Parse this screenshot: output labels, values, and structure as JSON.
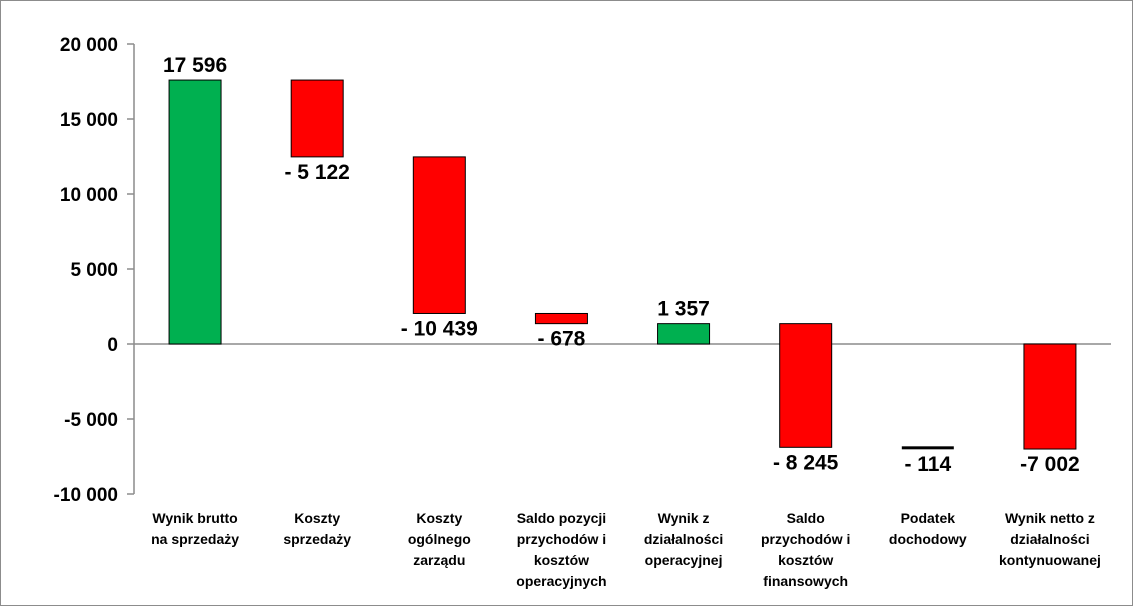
{
  "chart_data": {
    "type": "bar",
    "subtype": "waterfall",
    "title": "",
    "xlabel": "",
    "ylabel": "",
    "ylim": [
      -10000,
      20000
    ],
    "yticks": [
      20000,
      15000,
      10000,
      5000,
      0,
      -5000,
      -10000
    ],
    "ytick_labels": [
      "20 000",
      "15 000",
      "10 000",
      "5 000",
      "0",
      "-5 000",
      "-10 000"
    ],
    "grid": false,
    "legend": "none",
    "colors": {
      "positive": "#00b050",
      "negative": "#ff0000",
      "border": "#000000"
    },
    "steps": [
      {
        "category": "Wynik brutto na sprzedaży",
        "lines": [
          "Wynik brutto",
          "na sprzedaży"
        ],
        "start": 0,
        "end": 17596,
        "value": 17596,
        "label": "17 596",
        "kind": "total",
        "color": "#00b050",
        "label_pos": "above"
      },
      {
        "category": "Koszty sprzedaży",
        "lines": [
          "Koszty",
          "sprzedaży"
        ],
        "start": 17596,
        "end": 12474,
        "value": -5122,
        "label": "- 5 122",
        "kind": "delta",
        "color": "#ff0000",
        "label_pos": "below"
      },
      {
        "category": "Koszty ogólnego zarządu",
        "lines": [
          "Koszty",
          "ogólnego",
          "zarządu"
        ],
        "start": 12474,
        "end": 2035,
        "value": -10439,
        "label": "- 10 439",
        "kind": "delta",
        "color": "#ff0000",
        "label_pos": "below"
      },
      {
        "category": "Saldo pozycji przychodów i kosztów operacyjnych",
        "lines": [
          "Saldo pozycji",
          "przychodów i",
          "kosztów",
          "operacyjnych"
        ],
        "start": 2035,
        "end": 1357,
        "value": -678,
        "label": "- 678",
        "kind": "delta",
        "color": "#ff0000",
        "label_pos": "below"
      },
      {
        "category": "Wynik z działalności operacyjnej",
        "lines": [
          "Wynik z",
          "działalności",
          "operacyjnej"
        ],
        "start": 0,
        "end": 1357,
        "value": 1357,
        "label": "1 357",
        "kind": "total",
        "color": "#00b050",
        "label_pos": "above"
      },
      {
        "category": "Saldo przychodów i kosztów finansowych",
        "lines": [
          "Saldo",
          "przychodów i",
          "kosztów",
          "finansowych"
        ],
        "start": 1357,
        "end": -6888,
        "value": -8245,
        "label": "- 8 245",
        "kind": "delta",
        "color": "#ff0000",
        "label_pos": "below"
      },
      {
        "category": "Podatek dochodowy",
        "lines": [
          "Podatek",
          "dochodowy"
        ],
        "start": -6888,
        "end": -7002,
        "value": -114,
        "label": "- 114",
        "kind": "delta",
        "color": "#ff0000",
        "label_pos": "below"
      },
      {
        "category": "Wynik netto z działalności kontynuowanej",
        "lines": [
          "Wynik netto z",
          "działalności",
          "kontynuowanej"
        ],
        "start": 0,
        "end": -7002,
        "value": -7002,
        "label": "-7 002",
        "kind": "total",
        "color": "#ff0000",
        "label_pos": "below"
      }
    ]
  }
}
